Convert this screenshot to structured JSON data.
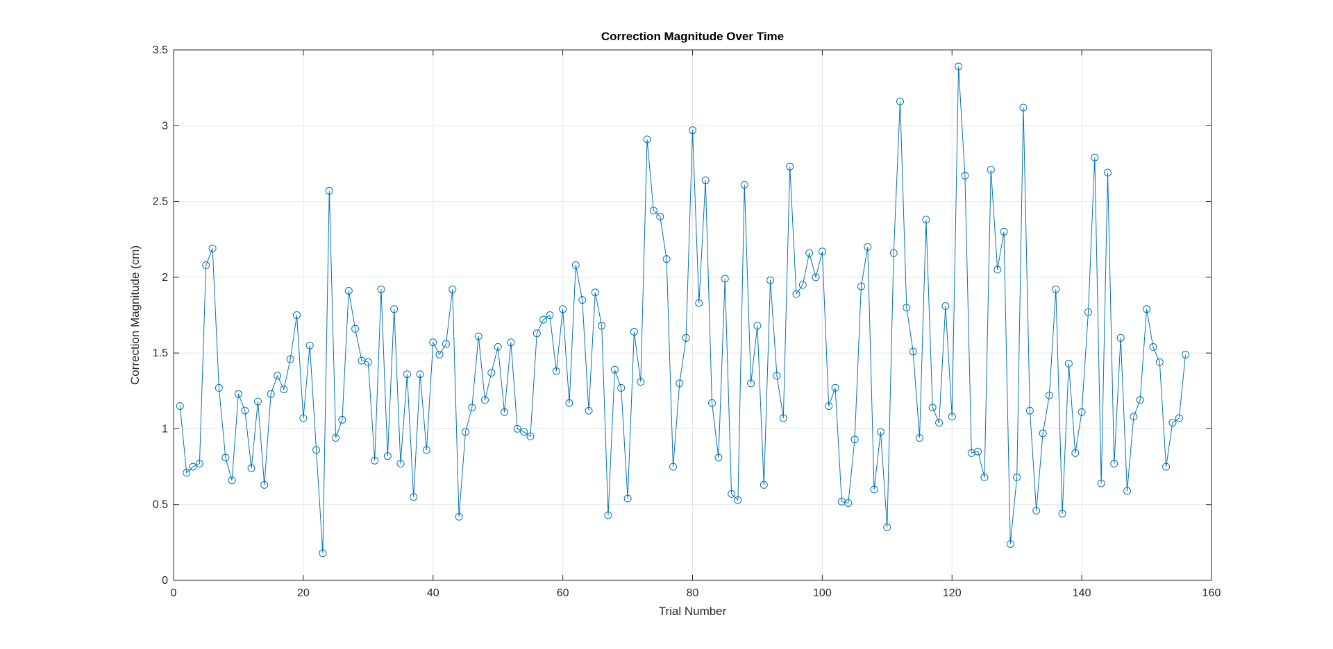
{
  "chart_data": {
    "type": "line",
    "title": "Correction Magnitude Over Time",
    "xlabel": "Trial Number",
    "ylabel": "Correction Magnitude (cm)",
    "xlim": [
      0,
      160
    ],
    "ylim": [
      0,
      3.5
    ],
    "xticks": [
      0,
      20,
      40,
      60,
      80,
      100,
      120,
      140,
      160
    ],
    "yticks": [
      0,
      0.5,
      1,
      1.5,
      2,
      2.5,
      3,
      3.5
    ],
    "xtick_labels": [
      "0",
      "20",
      "40",
      "60",
      "80",
      "100",
      "120",
      "140",
      "160"
    ],
    "ytick_labels": [
      "0",
      "0.5",
      "1",
      "1.5",
      "2",
      "2.5",
      "3",
      "3.5"
    ],
    "grid": true,
    "marker": "circle",
    "series_color": "#0072BD",
    "x": [
      1,
      2,
      3,
      4,
      5,
      6,
      7,
      8,
      9,
      10,
      11,
      12,
      13,
      14,
      15,
      16,
      17,
      18,
      19,
      20,
      21,
      22,
      23,
      24,
      25,
      26,
      27,
      28,
      29,
      30,
      31,
      32,
      33,
      34,
      35,
      36,
      37,
      38,
      39,
      40,
      41,
      42,
      43,
      44,
      45,
      46,
      47,
      48,
      49,
      50,
      51,
      52,
      53,
      54,
      55,
      56,
      57,
      58,
      59,
      60,
      61,
      62,
      63,
      64,
      65,
      66,
      67,
      68,
      69,
      70,
      71,
      72,
      73,
      74,
      75,
      76,
      77,
      78,
      79,
      80,
      81,
      82,
      83,
      84,
      85,
      86,
      87,
      88,
      89,
      90,
      91,
      92,
      93,
      94,
      95,
      96,
      97,
      98,
      99,
      100,
      101,
      102,
      103,
      104,
      105,
      106,
      107,
      108,
      109,
      110,
      111,
      112,
      113,
      114,
      115,
      116,
      117,
      118,
      119,
      120,
      121,
      122,
      123,
      124,
      125,
      126,
      127,
      128,
      129,
      130,
      131,
      132,
      133,
      134,
      135,
      136,
      137,
      138,
      139,
      140,
      141,
      142,
      143,
      144,
      145,
      146,
      147,
      148,
      149,
      150,
      151,
      152,
      153,
      154,
      155,
      156
    ],
    "values": [
      1.15,
      0.71,
      0.75,
      0.77,
      2.08,
      2.19,
      1.27,
      0.81,
      0.66,
      1.23,
      1.12,
      0.74,
      1.18,
      0.63,
      1.23,
      1.35,
      1.26,
      1.46,
      1.75,
      1.07,
      1.55,
      0.86,
      0.18,
      2.57,
      0.94,
      1.06,
      1.91,
      1.66,
      1.45,
      1.44,
      0.79,
      1.92,
      0.82,
      1.79,
      0.77,
      1.36,
      0.55,
      1.36,
      0.86,
      1.57,
      1.49,
      1.56,
      1.92,
      0.42,
      0.98,
      1.14,
      1.61,
      1.19,
      1.37,
      1.54,
      1.11,
      1.57,
      1.0,
      0.98,
      0.95,
      1.63,
      1.72,
      1.75,
      1.38,
      1.79,
      1.17,
      2.08,
      1.85,
      1.12,
      1.9,
      1.68,
      0.43,
      1.39,
      1.27,
      0.54,
      1.64,
      1.31,
      2.91,
      2.44,
      2.4,
      2.12,
      0.75,
      1.3,
      1.6,
      2.97,
      1.83,
      2.64,
      1.17,
      0.81,
      1.99,
      0.57,
      0.53,
      2.61,
      1.3,
      1.68,
      0.63,
      1.98,
      1.35,
      1.07,
      2.73,
      1.89,
      1.95,
      2.16,
      2.0,
      2.17,
      1.15,
      1.27,
      0.52,
      0.51,
      0.93,
      1.94,
      2.2,
      0.6,
      0.98,
      0.35,
      2.16,
      3.16,
      1.8,
      1.51,
      0.94,
      2.38,
      1.14,
      1.04,
      1.81,
      1.08,
      3.39,
      2.67,
      0.84,
      0.85,
      0.68,
      2.71,
      2.05,
      2.3,
      0.24,
      0.68,
      3.12,
      1.12,
      0.46,
      0.97,
      1.22,
      1.92,
      0.44,
      1.43,
      0.84,
      1.11,
      1.77,
      2.79,
      0.64,
      2.69,
      0.77,
      1.6,
      0.59,
      1.08,
      1.19,
      1.79,
      1.54,
      1.44,
      0.75,
      1.04,
      1.07,
      1.49
    ]
  }
}
